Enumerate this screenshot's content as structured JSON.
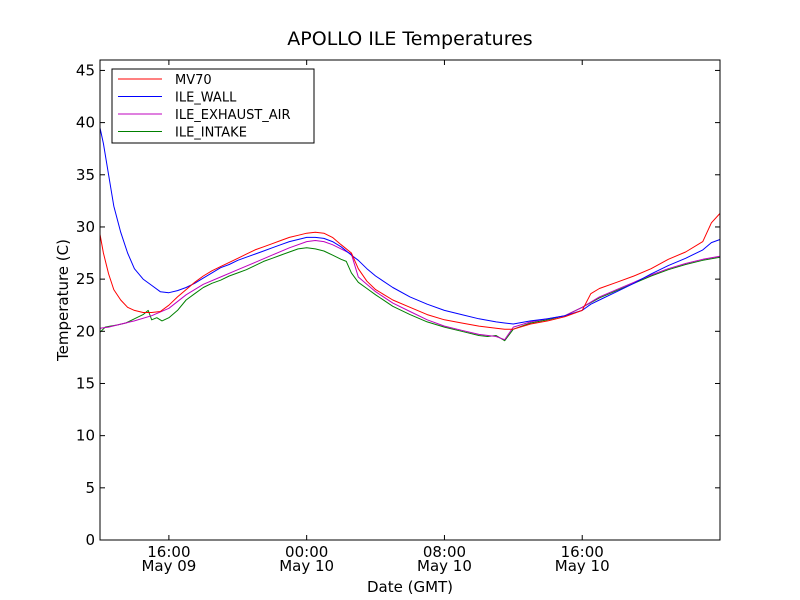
{
  "chart_data": {
    "type": "line",
    "title": "APOLLO ILE Temperatures",
    "xlabel": "Date (GMT)",
    "ylabel": "Temperature (C)",
    "x_unit": "hours since May 09 12:00 GMT",
    "xlim": [
      0,
      36
    ],
    "ylim": [
      0,
      46
    ],
    "yticks": [
      0,
      5,
      10,
      15,
      20,
      25,
      30,
      35,
      40,
      45
    ],
    "xticks": [
      {
        "x": 4,
        "time": "16:00",
        "date": "May 09"
      },
      {
        "x": 12,
        "time": "00:00",
        "date": "May 10"
      },
      {
        "x": 20,
        "time": "08:00",
        "date": "May 10"
      },
      {
        "x": 28,
        "time": "16:00",
        "date": "May 10"
      }
    ],
    "legend_position": "top-left",
    "series": [
      {
        "name": "MV70",
        "color": "#ff0000",
        "x": [
          0.0,
          0.2,
          0.5,
          0.8,
          1.2,
          1.6,
          2.0,
          2.5,
          3.0,
          3.5,
          4.0,
          4.5,
          5.0,
          5.5,
          6.0,
          6.5,
          7.0,
          7.5,
          8.0,
          8.5,
          9.0,
          9.5,
          10.0,
          10.5,
          11.0,
          11.5,
          12.0,
          12.5,
          13.0,
          13.5,
          14.0,
          14.6,
          15.0,
          15.5,
          16.0,
          17.0,
          18.0,
          19.0,
          20.0,
          21.0,
          22.0,
          23.0,
          23.5,
          24.0,
          25.0,
          26.0,
          27.0,
          28.0,
          28.5,
          29.0,
          30.0,
          31.0,
          32.0,
          33.0,
          34.0,
          35.0,
          35.5,
          36.0
        ],
        "y": [
          29.3,
          27.5,
          25.5,
          24.0,
          23.0,
          22.3,
          22.0,
          21.8,
          21.8,
          21.9,
          22.5,
          23.3,
          24.0,
          24.7,
          25.3,
          25.8,
          26.2,
          26.6,
          27.0,
          27.4,
          27.8,
          28.1,
          28.4,
          28.7,
          29.0,
          29.2,
          29.4,
          29.5,
          29.4,
          29.0,
          28.3,
          27.5,
          26.0,
          24.8,
          24.0,
          23.0,
          22.3,
          21.6,
          21.1,
          20.8,
          20.5,
          20.3,
          20.2,
          20.2,
          20.7,
          21.0,
          21.4,
          22.0,
          23.6,
          24.1,
          24.7,
          25.3,
          26.0,
          26.9,
          27.6,
          28.6,
          30.4,
          31.3
        ]
      },
      {
        "name": "ILE_WALL",
        "color": "#0000ff",
        "x": [
          0.0,
          0.2,
          0.5,
          0.8,
          1.2,
          1.6,
          2.0,
          2.5,
          3.0,
          3.5,
          4.0,
          4.5,
          5.0,
          5.5,
          6.0,
          6.5,
          7.0,
          7.5,
          8.0,
          8.5,
          9.0,
          9.5,
          10.0,
          10.5,
          11.0,
          11.5,
          12.0,
          12.5,
          13.0,
          13.5,
          14.0,
          14.6,
          15.0,
          15.5,
          16.0,
          17.0,
          18.0,
          19.0,
          20.0,
          21.0,
          22.0,
          23.0,
          23.5,
          24.0,
          25.0,
          26.0,
          27.0,
          28.0,
          28.5,
          29.0,
          30.0,
          31.0,
          32.0,
          33.0,
          34.0,
          35.0,
          35.5,
          36.0
        ],
        "y": [
          39.5,
          38.0,
          35.0,
          32.0,
          29.5,
          27.5,
          26.0,
          25.0,
          24.4,
          23.8,
          23.7,
          23.9,
          24.2,
          24.6,
          25.1,
          25.6,
          26.1,
          26.4,
          26.8,
          27.1,
          27.4,
          27.7,
          28.0,
          28.3,
          28.6,
          28.8,
          29.0,
          29.0,
          28.9,
          28.6,
          28.1,
          27.3,
          26.8,
          26.0,
          25.3,
          24.2,
          23.3,
          22.6,
          22.0,
          21.6,
          21.2,
          20.9,
          20.8,
          20.7,
          21.0,
          21.2,
          21.5,
          22.0,
          22.6,
          23.0,
          23.8,
          24.6,
          25.5,
          26.3,
          27.0,
          27.8,
          28.5,
          28.8
        ]
      },
      {
        "name": "ILE_EXHAUST_AIR",
        "color": "#bf00bf",
        "x": [
          0.0,
          0.5,
          1.0,
          2.0,
          3.0,
          4.0,
          5.0,
          6.0,
          7.0,
          8.0,
          9.0,
          10.0,
          11.0,
          12.0,
          12.5,
          13.0,
          13.5,
          14.0,
          14.6,
          15.0,
          16.0,
          17.0,
          18.0,
          19.0,
          20.0,
          21.0,
          22.0,
          23.0,
          23.5,
          24.0,
          25.0,
          26.0,
          27.0,
          28.0,
          29.0,
          30.0,
          31.0,
          32.0,
          33.0,
          34.0,
          35.0,
          36.0
        ],
        "y": [
          20.3,
          20.4,
          20.6,
          21.0,
          21.5,
          22.2,
          23.5,
          24.5,
          25.2,
          25.9,
          26.6,
          27.3,
          28.0,
          28.6,
          28.7,
          28.6,
          28.3,
          27.9,
          27.4,
          25.2,
          23.8,
          22.7,
          21.9,
          21.1,
          20.5,
          20.1,
          19.7,
          19.5,
          19.2,
          20.4,
          20.9,
          21.2,
          21.5,
          22.3,
          23.3,
          24.0,
          24.7,
          25.4,
          26.0,
          26.5,
          26.9,
          27.2
        ]
      },
      {
        "name": "ILE_INTAKE",
        "color": "#008000",
        "x": [
          0.0,
          0.3,
          0.6,
          1.0,
          1.5,
          2.0,
          2.5,
          2.8,
          3.0,
          3.3,
          3.6,
          4.0,
          4.5,
          5.0,
          5.5,
          6.0,
          6.5,
          7.0,
          7.5,
          8.0,
          8.5,
          9.0,
          9.5,
          10.0,
          10.5,
          11.0,
          11.5,
          12.0,
          12.5,
          13.0,
          13.5,
          14.0,
          14.3,
          14.6,
          15.0,
          15.5,
          16.0,
          17.0,
          18.0,
          19.0,
          20.0,
          21.0,
          22.0,
          22.5,
          23.0,
          23.5,
          24.0,
          25.0,
          26.0,
          27.0,
          28.0,
          29.0,
          30.0,
          31.0,
          32.0,
          33.0,
          34.0,
          35.0,
          36.0
        ],
        "y": [
          19.9,
          20.4,
          20.5,
          20.6,
          20.8,
          21.2,
          21.6,
          22.0,
          21.1,
          21.3,
          21.0,
          21.3,
          22.0,
          23.0,
          23.6,
          24.2,
          24.6,
          24.9,
          25.3,
          25.6,
          25.9,
          26.3,
          26.7,
          27.0,
          27.3,
          27.6,
          27.9,
          28.0,
          27.9,
          27.7,
          27.3,
          26.9,
          26.7,
          25.6,
          24.7,
          24.1,
          23.5,
          22.4,
          21.6,
          20.9,
          20.4,
          20.0,
          19.6,
          19.5,
          19.6,
          19.1,
          20.2,
          20.8,
          21.1,
          21.5,
          22.3,
          23.2,
          23.9,
          24.6,
          25.3,
          25.9,
          26.4,
          26.8,
          27.1
        ]
      }
    ]
  }
}
